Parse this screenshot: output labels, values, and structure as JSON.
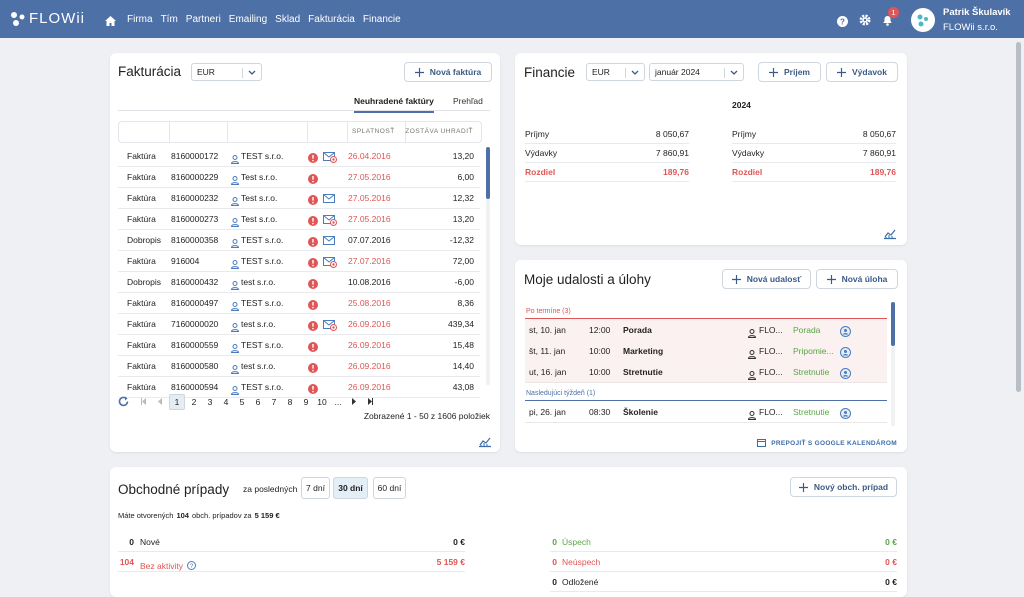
{
  "nav": {
    "brand": "FLOWii",
    "items": [
      "Firma",
      "Tím",
      "Partneri",
      "Emailing",
      "Sklad",
      "Fakturácia",
      "Financie"
    ],
    "badge": "1",
    "user": {
      "name": "Patrik Škulavík",
      "company": "FLOWii s.r.o."
    }
  },
  "invoices": {
    "title": "Fakturácia",
    "currency": "EUR",
    "new_button": "Nová faktúra",
    "tabs": [
      "Neuhradené faktúry",
      "Prehľad"
    ],
    "active_tab": 0,
    "columns": [
      "SPLATNOSŤ",
      "ZOSTÁVA UHRADIŤ"
    ],
    "rows": [
      {
        "type": "Faktúra",
        "number": "8160000172",
        "partner": "TEST s.r.o.",
        "icon": "reminder",
        "due": "26.04.2016",
        "overdue": true,
        "amount": "13,20"
      },
      {
        "type": "Faktúra",
        "number": "8160000229",
        "partner": "Test s.r.o.",
        "icon": "none",
        "due": "27.05.2016",
        "overdue": true,
        "amount": "6,00"
      },
      {
        "type": "Faktúra",
        "number": "8160000232",
        "partner": "Test s.r.o.",
        "icon": "mail",
        "due": "27.05.2016",
        "overdue": true,
        "amount": "12,32"
      },
      {
        "type": "Faktúra",
        "number": "8160000273",
        "partner": "Test s.r.o.",
        "icon": "reminder",
        "due": "27.05.2016",
        "overdue": true,
        "amount": "13,20"
      },
      {
        "type": "Dobropis",
        "number": "8160000358",
        "partner": "TEST s.r.o.",
        "icon": "mail",
        "due": "07.07.2016",
        "overdue": false,
        "amount": "-12,32"
      },
      {
        "type": "Faktúra",
        "number": "916004",
        "partner": "TEST s.r.o.",
        "icon": "reminder",
        "due": "27.07.2016",
        "overdue": true,
        "amount": "72,00"
      },
      {
        "type": "Dobropis",
        "number": "8160000432",
        "partner": "test s.r.o.",
        "icon": "none",
        "due": "10.08.2016",
        "overdue": false,
        "amount": "-6,00"
      },
      {
        "type": "Faktúra",
        "number": "8160000497",
        "partner": "TEST s.r.o.",
        "icon": "none",
        "due": "25.08.2016",
        "overdue": true,
        "amount": "8,36"
      },
      {
        "type": "Faktúra",
        "number": "7160000020",
        "partner": "test s.r.o.",
        "icon": "reminder",
        "due": "26.09.2016",
        "overdue": true,
        "amount": "439,34"
      },
      {
        "type": "Faktúra",
        "number": "8160000559",
        "partner": "TEST s.r.o.",
        "icon": "none",
        "due": "26.09.2016",
        "overdue": true,
        "amount": "15,48"
      },
      {
        "type": "Faktúra",
        "number": "8160000580",
        "partner": "test s.r.o.",
        "icon": "none",
        "due": "26.09.2016",
        "overdue": true,
        "amount": "14,40"
      },
      {
        "type": "Faktúra",
        "number": "8160000594",
        "partner": "TEST s.r.o.",
        "icon": "none",
        "due": "26.09.2016",
        "overdue": true,
        "amount": "43,08"
      }
    ],
    "pages": [
      "1",
      "2",
      "3",
      "4",
      "5",
      "6",
      "7",
      "8",
      "9",
      "10",
      "..."
    ],
    "active_page": 0,
    "footer": "Zobrazené 1 - 50 z 1606 položiek"
  },
  "finance": {
    "title": "Financie",
    "currency": "EUR",
    "period": "január 2024",
    "buttons": [
      "Príjem",
      "Výdavok"
    ],
    "columns": [
      {
        "rows": [
          {
            "label": "Príjmy",
            "value": "8 050,67"
          },
          {
            "label": "Výdavky",
            "value": "7 860,91"
          },
          {
            "label": "Rozdiel",
            "value": "189,76",
            "highlight": true
          }
        ]
      },
      {
        "header": "2024",
        "rows": [
          {
            "label": "Príjmy",
            "value": "8 050,67"
          },
          {
            "label": "Výdavky",
            "value": "7 860,91"
          },
          {
            "label": "Rozdiel",
            "value": "189,76",
            "highlight": true
          }
        ]
      }
    ]
  },
  "events": {
    "title": "Moje udalosti a úlohy",
    "buttons": [
      "Nová udalosť",
      "Nová úloha"
    ],
    "groups": [
      {
        "label": "Po termíne (3)",
        "overdue": true,
        "items": [
          {
            "day": "st, 10. jan",
            "time": "12:00",
            "title": "Porada",
            "owner": "FLO...",
            "kind": "Porada"
          },
          {
            "day": "št, 11. jan",
            "time": "10:00",
            "title": "Marketing",
            "owner": "FLO...",
            "kind": "Pripomie..."
          },
          {
            "day": "ut, 16. jan",
            "time": "10:00",
            "title": "Stretnutie",
            "owner": "FLO...",
            "kind": "Stretnutie"
          }
        ]
      },
      {
        "label": "Nasledujúci týždeň (1)",
        "overdue": false,
        "items": [
          {
            "day": "pi, 26. jan",
            "time": "08:30",
            "title": "Školenie",
            "owner": "FLO...",
            "kind": "Stretnutie"
          }
        ]
      }
    ],
    "link": "PREPOJIŤ S GOOGLE KALENDÁROM"
  },
  "cases": {
    "title": "Obchodné prípady",
    "range_label": "za posledných",
    "ranges": [
      "7 dní",
      "30 dní",
      "60 dní"
    ],
    "active_range": 1,
    "new_button": "Nový obch. prípad",
    "summary": {
      "prefix": "Máte otvorených",
      "count": "104",
      "middle": "obch. prípadov za",
      "amount": "5 159 €"
    },
    "left": [
      {
        "count": "0",
        "label": "Nové",
        "value": "0 €",
        "tone": "normal"
      },
      {
        "count": "104",
        "label": "Bez aktivity",
        "value": "5 159 €",
        "tone": "red",
        "help": true
      }
    ],
    "right": [
      {
        "count": "0",
        "label": "Úspech",
        "value": "0 €",
        "tone": "green"
      },
      {
        "count": "0",
        "label": "Neúspech",
        "value": "0 €",
        "tone": "red"
      },
      {
        "count": "0",
        "label": "Odložené",
        "value": "0 €",
        "tone": "normal"
      }
    ]
  }
}
